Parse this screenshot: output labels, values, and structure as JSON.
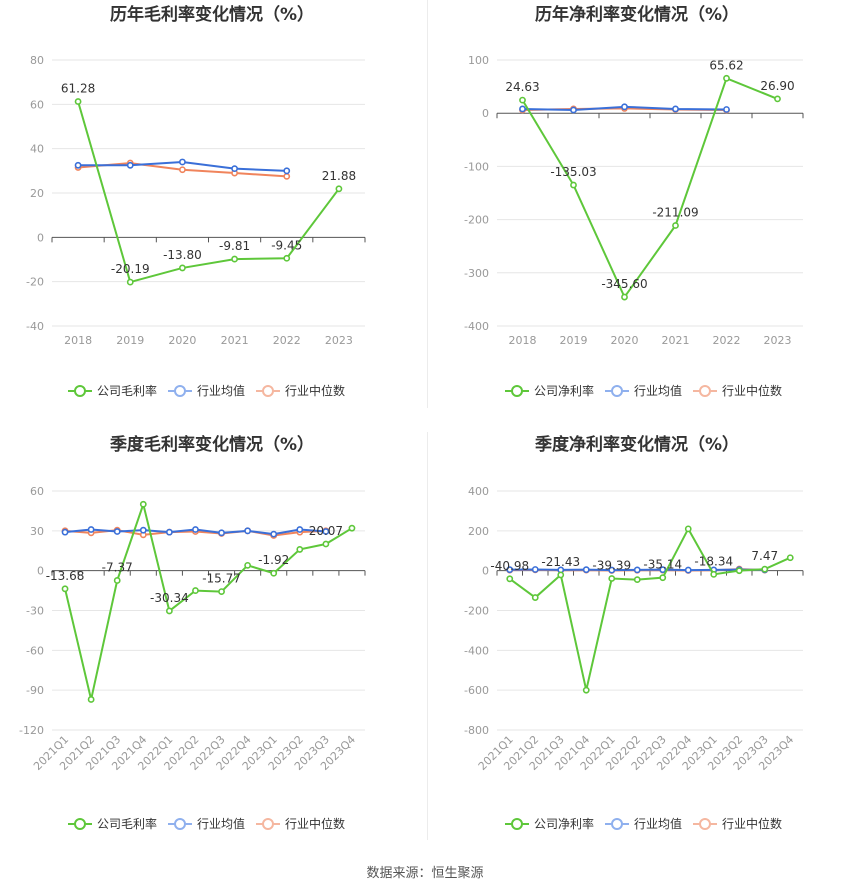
{
  "source": "数据来源：恒生聚源",
  "colors": {
    "company": "#5ec73a",
    "industry_avg": "#3a6fd8",
    "industry_median": "#f0845c",
    "grid": "#e6e6e6",
    "axis_text": "#999999",
    "title": "#333333"
  },
  "chart_data": [
    {
      "type": "line",
      "title": "历年毛利率变化情况（%）",
      "categories": [
        "2018",
        "2019",
        "2020",
        "2021",
        "2022",
        "2023"
      ],
      "ylim": [
        -40,
        80
      ],
      "yticks": [
        80,
        60,
        40,
        20,
        0,
        -20,
        -40
      ],
      "series": [
        {
          "name": "公司毛利率",
          "values": [
            61.28,
            -20.19,
            -13.8,
            -9.81,
            -9.45,
            21.88
          ],
          "labels": [
            "61.28",
            "-20.19",
            "-13.80",
            "-9.81",
            "-9.45",
            "21.88"
          ]
        },
        {
          "name": "行业均值",
          "values": [
            32.5,
            32.5,
            34,
            31,
            30,
            null
          ]
        },
        {
          "name": "行业中位数",
          "values": [
            31.5,
            33.5,
            30.5,
            29,
            27.5,
            null
          ]
        }
      ],
      "rotate_x": false
    },
    {
      "type": "line",
      "title": "历年净利率变化情况（%）",
      "categories": [
        "2018",
        "2019",
        "2020",
        "2021",
        "2022",
        "2023"
      ],
      "ylim": [
        -400,
        100
      ],
      "yticks": [
        100,
        0,
        -100,
        -200,
        -300,
        -400
      ],
      "series": [
        {
          "name": "公司净利率",
          "values": [
            24.63,
            -135.03,
            -345.6,
            -211.09,
            65.62,
            26.9
          ],
          "labels": [
            "24.63",
            "-135.03",
            "-345.60",
            "-211.09",
            "65.62",
            "26.90"
          ]
        },
        {
          "name": "行业均值",
          "values": [
            8,
            6,
            12,
            8,
            7,
            null
          ]
        },
        {
          "name": "行业中位数",
          "values": [
            6,
            8,
            9,
            7,
            6,
            null
          ]
        }
      ],
      "rotate_x": false
    },
    {
      "type": "line",
      "title": "季度毛利率变化情况（%）",
      "categories": [
        "2021Q1",
        "2021Q2",
        "2021Q3",
        "2021Q4",
        "2022Q1",
        "2022Q2",
        "2022Q3",
        "2022Q4",
        "2023Q1",
        "2023Q2",
        "2023Q3",
        "2023Q4"
      ],
      "ylim": [
        -120,
        60
      ],
      "yticks": [
        60,
        30,
        0,
        -30,
        -60,
        -90,
        -120
      ],
      "series": [
        {
          "name": "公司毛利率",
          "values": [
            -13.68,
            -97,
            -7.37,
            50,
            -30.34,
            -15,
            -15.77,
            4,
            -1.92,
            16,
            20.07,
            32
          ],
          "labels": [
            "-13.68",
            null,
            "-7.37",
            null,
            "-30.34",
            null,
            "-15.77",
            null,
            "-1.92",
            null,
            "20.07",
            null
          ]
        },
        {
          "name": "行业均值",
          "values": [
            29,
            31,
            29.5,
            30.5,
            29,
            31,
            28.5,
            30,
            27.5,
            31,
            29.5,
            null
          ]
        },
        {
          "name": "行业中位数",
          "values": [
            30,
            28.5,
            30.5,
            27,
            29,
            29.5,
            28,
            30,
            26.5,
            29,
            30,
            null
          ]
        }
      ],
      "rotate_x": true
    },
    {
      "type": "line",
      "title": "季度净利率变化情况（%）",
      "categories": [
        "2021Q1",
        "2021Q2",
        "2021Q3",
        "2021Q4",
        "2022Q1",
        "2022Q2",
        "2022Q3",
        "2022Q4",
        "2023Q1",
        "2023Q2",
        "2023Q3",
        "2023Q4"
      ],
      "ylim": [
        -800,
        400
      ],
      "yticks": [
        400,
        200,
        0,
        -200,
        -400,
        -600,
        -800
      ],
      "series": [
        {
          "name": "公司净利率",
          "values": [
            -40.98,
            -135,
            -21.43,
            -600,
            -39.39,
            -45,
            -35.14,
            210,
            -18.34,
            0,
            7.47,
            65
          ],
          "labels": [
            "-40.98",
            null,
            "-21.43",
            null,
            "-39.39",
            null,
            "-35.14",
            null,
            "-18.34",
            null,
            "7.47",
            null
          ]
        },
        {
          "name": "行业均值",
          "values": [
            5,
            6,
            4,
            5,
            3,
            4,
            5,
            3,
            4,
            5,
            4,
            null
          ]
        },
        {
          "name": "行业中位数",
          "values": [
            3,
            4,
            2,
            3,
            1,
            2,
            3,
            1,
            2,
            8,
            3,
            null
          ]
        }
      ],
      "rotate_x": true
    }
  ]
}
